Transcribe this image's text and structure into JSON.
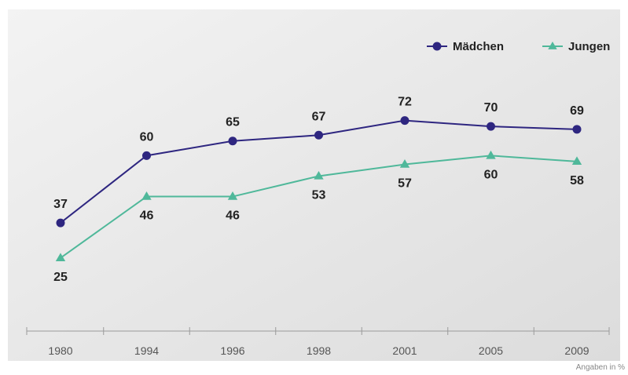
{
  "chart_data": {
    "type": "line",
    "x": [
      "1980",
      "1994",
      "1996",
      "1998",
      "2001",
      "2005",
      "2009"
    ],
    "series": [
      {
        "name": "Mädchen",
        "values": [
          37,
          60,
          65,
          67,
          72,
          70,
          69
        ],
        "color": "#2e2680",
        "marker": "circle",
        "label_position": "above"
      },
      {
        "name": "Jungen",
        "values": [
          25,
          46,
          46,
          53,
          57,
          60,
          58
        ],
        "color": "#4fb89a",
        "marker": "triangle",
        "label_position": "below"
      }
    ],
    "ylim": [
      0,
      110
    ],
    "legend": "top-right",
    "grid": false,
    "footnote": "Angaben in %"
  }
}
